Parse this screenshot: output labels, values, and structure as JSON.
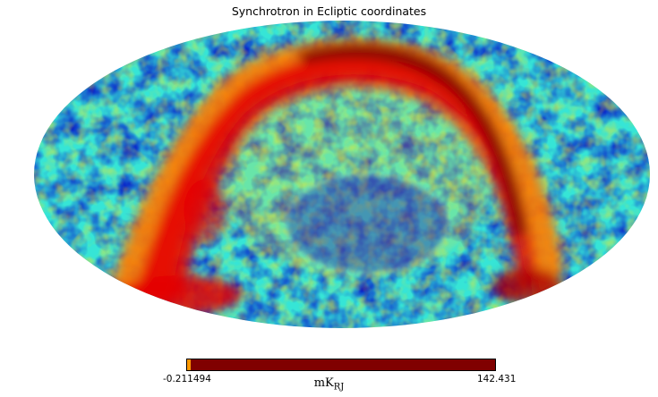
{
  "figure": {
    "title": "Synchrotron in Ecliptic coordinates",
    "projection": "mollweide",
    "colormap": "jet",
    "colors": {
      "sky_low": "#0000c8",
      "sky_mid": "#19d8ff",
      "sky_green": "#6cff8a",
      "sky_yellow": "#ffe81a",
      "band_orange": "#ff7a00",
      "band_red": "#e40000",
      "band_dark": "#7f0000",
      "background": "#ffffff"
    }
  },
  "colorbar": {
    "min_label": "-0.211494",
    "max_label": "142.431",
    "unit_main": "mK",
    "unit_sub": "RJ",
    "bar_color": "#800000",
    "low_color": "#ff9900"
  }
}
